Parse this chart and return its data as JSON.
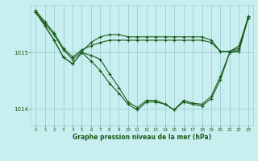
{
  "bg_color": "#c8eef0",
  "grid_color": "#a0d4d8",
  "line_color": "#1a5c1a",
  "marker_color": "#1a5c1a",
  "xlabel": "Graphe pression niveau de la mer (hPa)",
  "xlabel_color": "#1a5c1a",
  "ylim": [
    1013.7,
    1015.85
  ],
  "yticks": [
    1014,
    1015
  ],
  "xlim": [
    -0.5,
    23.5
  ],
  "xticks": [
    0,
    1,
    2,
    3,
    4,
    5,
    6,
    7,
    8,
    9,
    10,
    11,
    12,
    13,
    14,
    15,
    16,
    17,
    18,
    19,
    20,
    21,
    22,
    23
  ],
  "series": [
    [
      1015.75,
      1015.55,
      1015.35,
      1015.08,
      1014.92,
      1015.05,
      1015.12,
      1015.18,
      1015.22,
      1015.22,
      1015.22,
      1015.22,
      1015.22,
      1015.22,
      1015.22,
      1015.22,
      1015.22,
      1015.22,
      1015.22,
      1015.18,
      1015.02,
      1015.02,
      1015.08,
      1015.62
    ],
    [
      1015.72,
      1015.52,
      1015.32,
      1015.05,
      1014.88,
      1015.02,
      1015.18,
      1015.28,
      1015.32,
      1015.32,
      1015.28,
      1015.28,
      1015.28,
      1015.28,
      1015.28,
      1015.28,
      1015.28,
      1015.28,
      1015.28,
      1015.22,
      1015.02,
      1015.02,
      1015.12,
      1015.62
    ],
    [
      1015.72,
      1015.48,
      1015.22,
      1014.92,
      1014.8,
      1015.0,
      1014.85,
      1014.68,
      1014.45,
      1014.28,
      1014.08,
      1013.98,
      1014.12,
      1014.12,
      1014.08,
      1013.98,
      1014.12,
      1014.08,
      1014.05,
      1014.18,
      1014.52,
      1015.0,
      1015.02,
      1015.62
    ],
    [
      1015.72,
      1015.48,
      1015.22,
      1014.92,
      1014.8,
      1015.0,
      1014.95,
      1014.88,
      1014.62,
      1014.38,
      1014.12,
      1014.02,
      1014.15,
      1014.15,
      1014.08,
      1013.98,
      1014.15,
      1014.1,
      1014.08,
      1014.22,
      1014.58,
      1015.0,
      1015.05,
      1015.65
    ]
  ]
}
